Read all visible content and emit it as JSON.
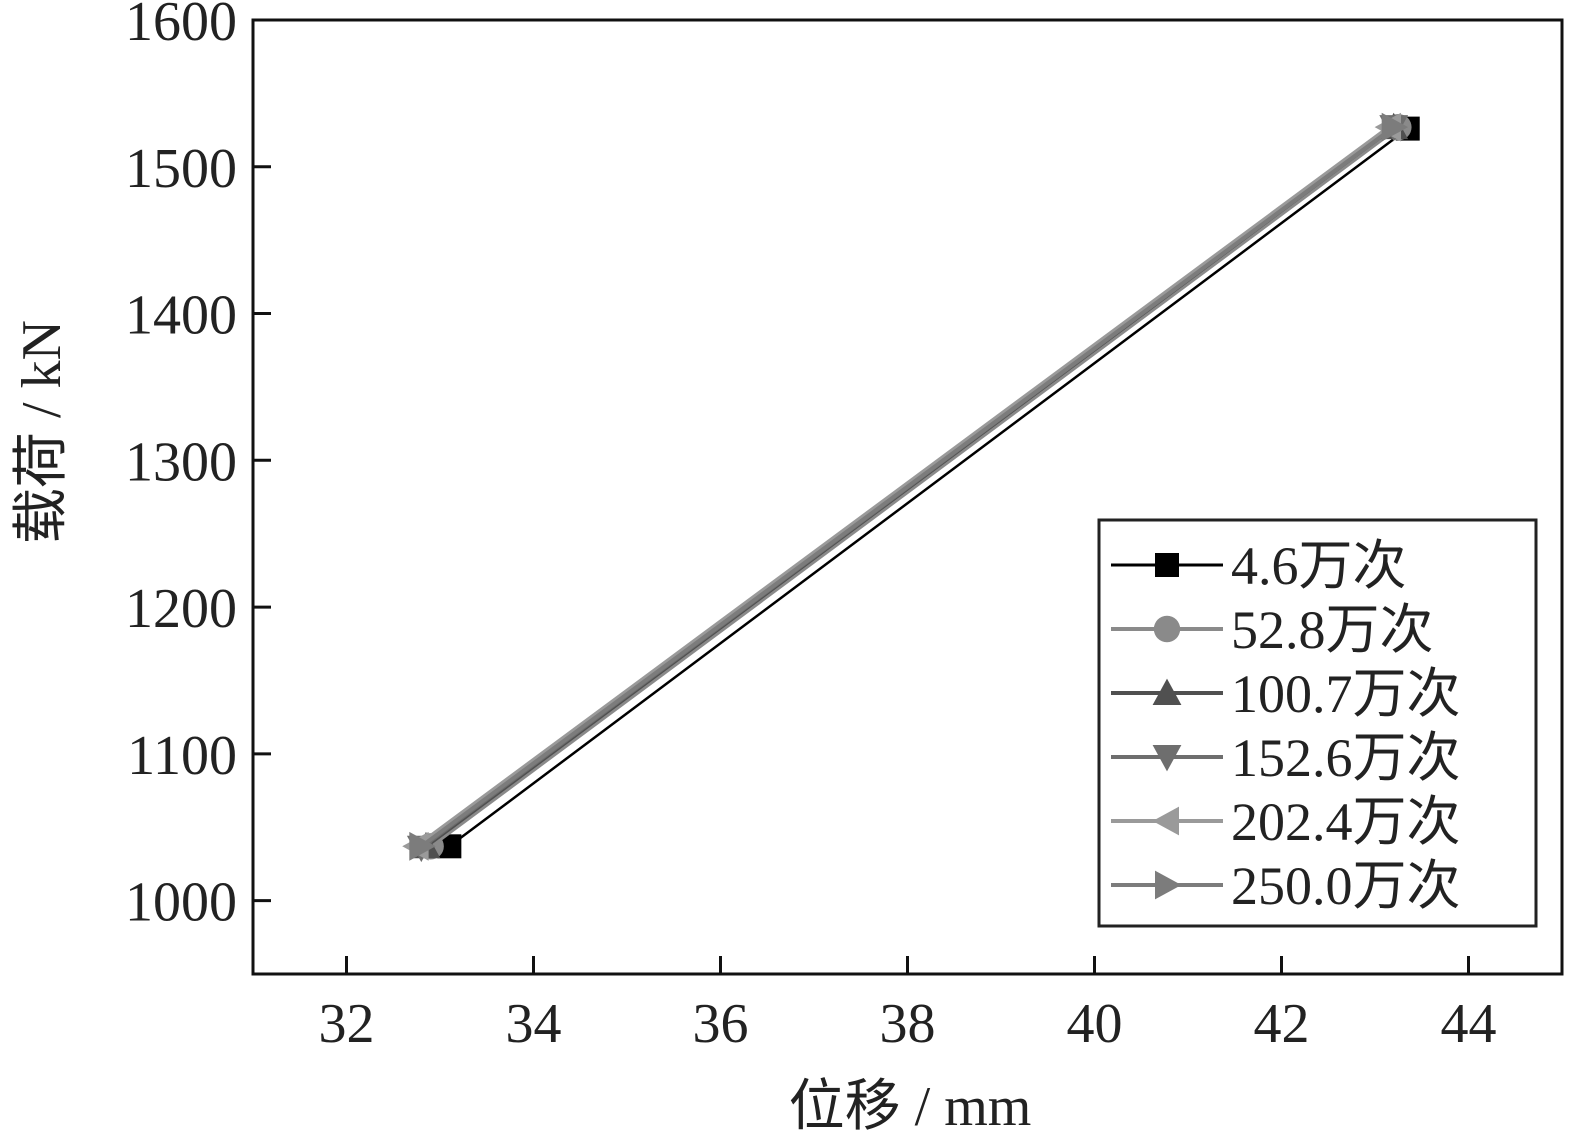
{
  "chart_data": {
    "type": "line",
    "title": "",
    "xlabel": "位移 / mm",
    "ylabel": "载荷 / kN",
    "xlim": [
      31,
      45
    ],
    "ylim": [
      950,
      1600
    ],
    "xticks": [
      32,
      34,
      36,
      38,
      40,
      42,
      44
    ],
    "yticks": [
      1000,
      1100,
      1200,
      1300,
      1400,
      1500,
      1600
    ],
    "grid": false,
    "legend_position": "bottom-right",
    "series": [
      {
        "name": "4.6万次",
        "marker": "square",
        "color": "#000000",
        "x": [
          33.1,
          43.35
        ],
        "y": [
          1037,
          1526
        ]
      },
      {
        "name": "52.8万次",
        "marker": "circle",
        "color": "#8a8a8a",
        "x": [
          32.9,
          43.25
        ],
        "y": [
          1037,
          1527
        ]
      },
      {
        "name": "100.7万次",
        "marker": "triangle-up",
        "color": "#505050",
        "x": [
          32.85,
          43.2
        ],
        "y": [
          1037,
          1527
        ]
      },
      {
        "name": "152.6万次",
        "marker": "triangle-down",
        "color": "#6e6e6e",
        "x": [
          32.8,
          43.2
        ],
        "y": [
          1036,
          1527
        ]
      },
      {
        "name": "202.4万次",
        "marker": "triangle-left",
        "color": "#9a9a9a",
        "x": [
          32.75,
          43.15
        ],
        "y": [
          1037,
          1527
        ]
      },
      {
        "name": "250.0万次",
        "marker": "triangle-right",
        "color": "#7c7c7c",
        "x": [
          32.8,
          43.2
        ],
        "y": [
          1037,
          1527
        ]
      }
    ]
  }
}
